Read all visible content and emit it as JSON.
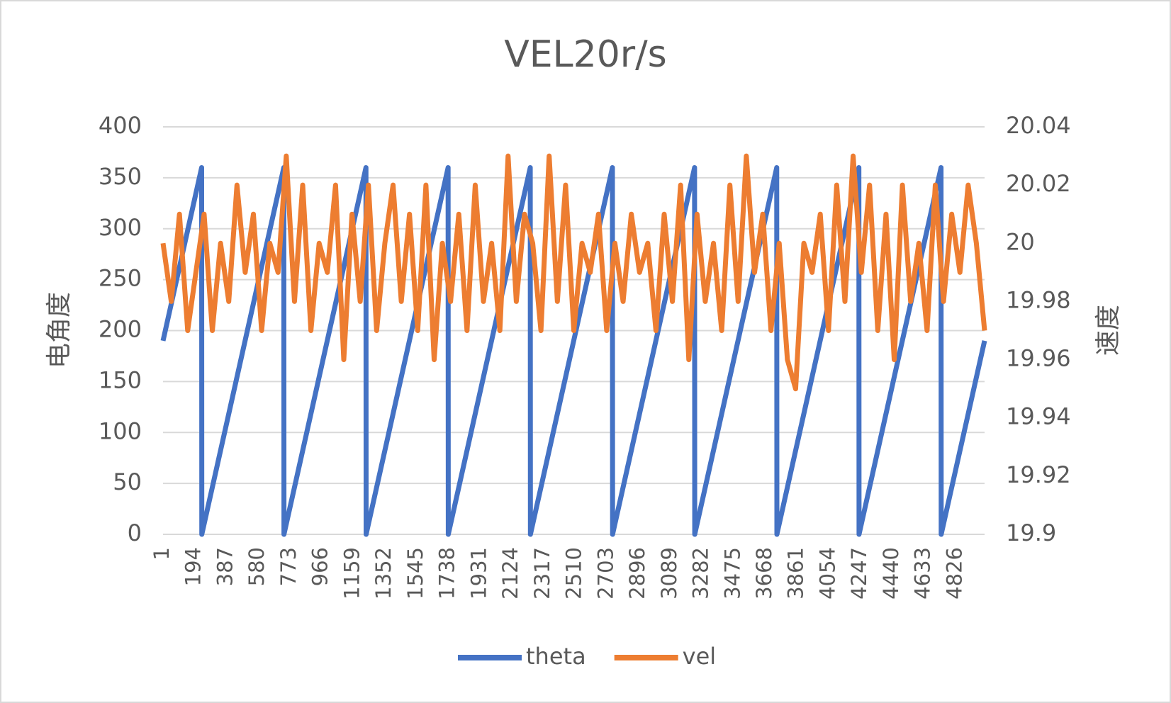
{
  "chart_data": {
    "type": "line",
    "title": "VEL20r/s",
    "y_label": "电角度",
    "y2_label": "速度",
    "xlim": [
      1,
      5001
    ],
    "xticks": [
      1,
      194,
      387,
      580,
      773,
      966,
      1159,
      1352,
      1545,
      1738,
      1931,
      2124,
      2317,
      2510,
      2703,
      2896,
      3089,
      3282,
      3475,
      3668,
      3861,
      4054,
      4247,
      4440,
      4633,
      4826
    ],
    "ylim": [
      0,
      400
    ],
    "yticks": [
      0,
      50,
      100,
      150,
      200,
      250,
      300,
      350,
      400
    ],
    "y2lim": [
      19.9,
      20.04
    ],
    "y2ticks": [
      19.9,
      19.92,
      19.94,
      19.96,
      19.98,
      20,
      20.02,
      20.04
    ],
    "grid": true,
    "legend": "bottom",
    "series": [
      {
        "name": "theta",
        "color": "#4472c4",
        "x": [
          1,
          236,
          237,
          736,
          737,
          1236,
          1237,
          1736,
          1737,
          2236,
          2237,
          2736,
          2737,
          3236,
          3237,
          3736,
          3737,
          4236,
          4237,
          4736,
          4737,
          5001
        ],
        "values": [
          190,
          360,
          0,
          360,
          0,
          360,
          0,
          360,
          0,
          360,
          0,
          360,
          0,
          360,
          0,
          360,
          0,
          360,
          0,
          360,
          0,
          190
        ]
      },
      {
        "name": "vel",
        "color": "#ed7d31",
        "axis": "y2",
        "x": [
          1,
          51,
          101,
          151,
          201,
          251,
          301,
          351,
          401,
          451,
          501,
          551,
          601,
          651,
          701,
          751,
          801,
          851,
          901,
          951,
          1001,
          1051,
          1101,
          1151,
          1201,
          1251,
          1301,
          1351,
          1401,
          1451,
          1501,
          1551,
          1601,
          1651,
          1701,
          1751,
          1801,
          1851,
          1901,
          1951,
          2001,
          2051,
          2101,
          2151,
          2201,
          2251,
          2301,
          2351,
          2401,
          2451,
          2501,
          2551,
          2601,
          2651,
          2701,
          2751,
          2801,
          2851,
          2901,
          2951,
          3001,
          3051,
          3101,
          3151,
          3201,
          3251,
          3301,
          3351,
          3401,
          3451,
          3501,
          3551,
          3601,
          3651,
          3701,
          3751,
          3801,
          3851,
          3901,
          3951,
          4001,
          4051,
          4101,
          4151,
          4201,
          4251,
          4301,
          4351,
          4401,
          4451,
          4501,
          4551,
          4601,
          4651,
          4701,
          4751,
          4801,
          4851,
          4901,
          4951,
          5001
        ],
        "values": [
          20,
          19.98,
          20.01,
          19.97,
          19.99,
          20.01,
          19.97,
          20,
          19.98,
          20.02,
          19.99,
          20.01,
          19.97,
          20,
          19.99,
          20.03,
          19.98,
          20.02,
          19.97,
          20,
          19.99,
          20.02,
          19.96,
          20.01,
          19.98,
          20.02,
          19.97,
          20,
          20.02,
          19.98,
          20.01,
          19.97,
          20.02,
          19.96,
          20,
          19.98,
          20.01,
          19.97,
          20.02,
          19.98,
          20,
          19.97,
          20.03,
          19.98,
          20.01,
          20,
          19.97,
          20.03,
          19.98,
          20.02,
          19.97,
          20,
          19.99,
          20.01,
          19.97,
          20,
          19.98,
          20.01,
          19.99,
          20,
          19.97,
          20.01,
          19.98,
          20.02,
          19.96,
          20.01,
          19.98,
          20,
          19.97,
          20.02,
          19.98,
          20.03,
          19.99,
          20.01,
          19.97,
          20,
          19.96,
          19.95,
          20,
          19.99,
          20.01,
          19.97,
          20.02,
          19.98,
          20.03,
          19.99,
          20.02,
          19.97,
          20.01,
          19.96,
          20.02,
          19.98,
          20,
          19.97,
          20.02,
          19.98,
          20.01,
          19.99,
          20.02,
          20,
          19.97
        ]
      }
    ]
  }
}
